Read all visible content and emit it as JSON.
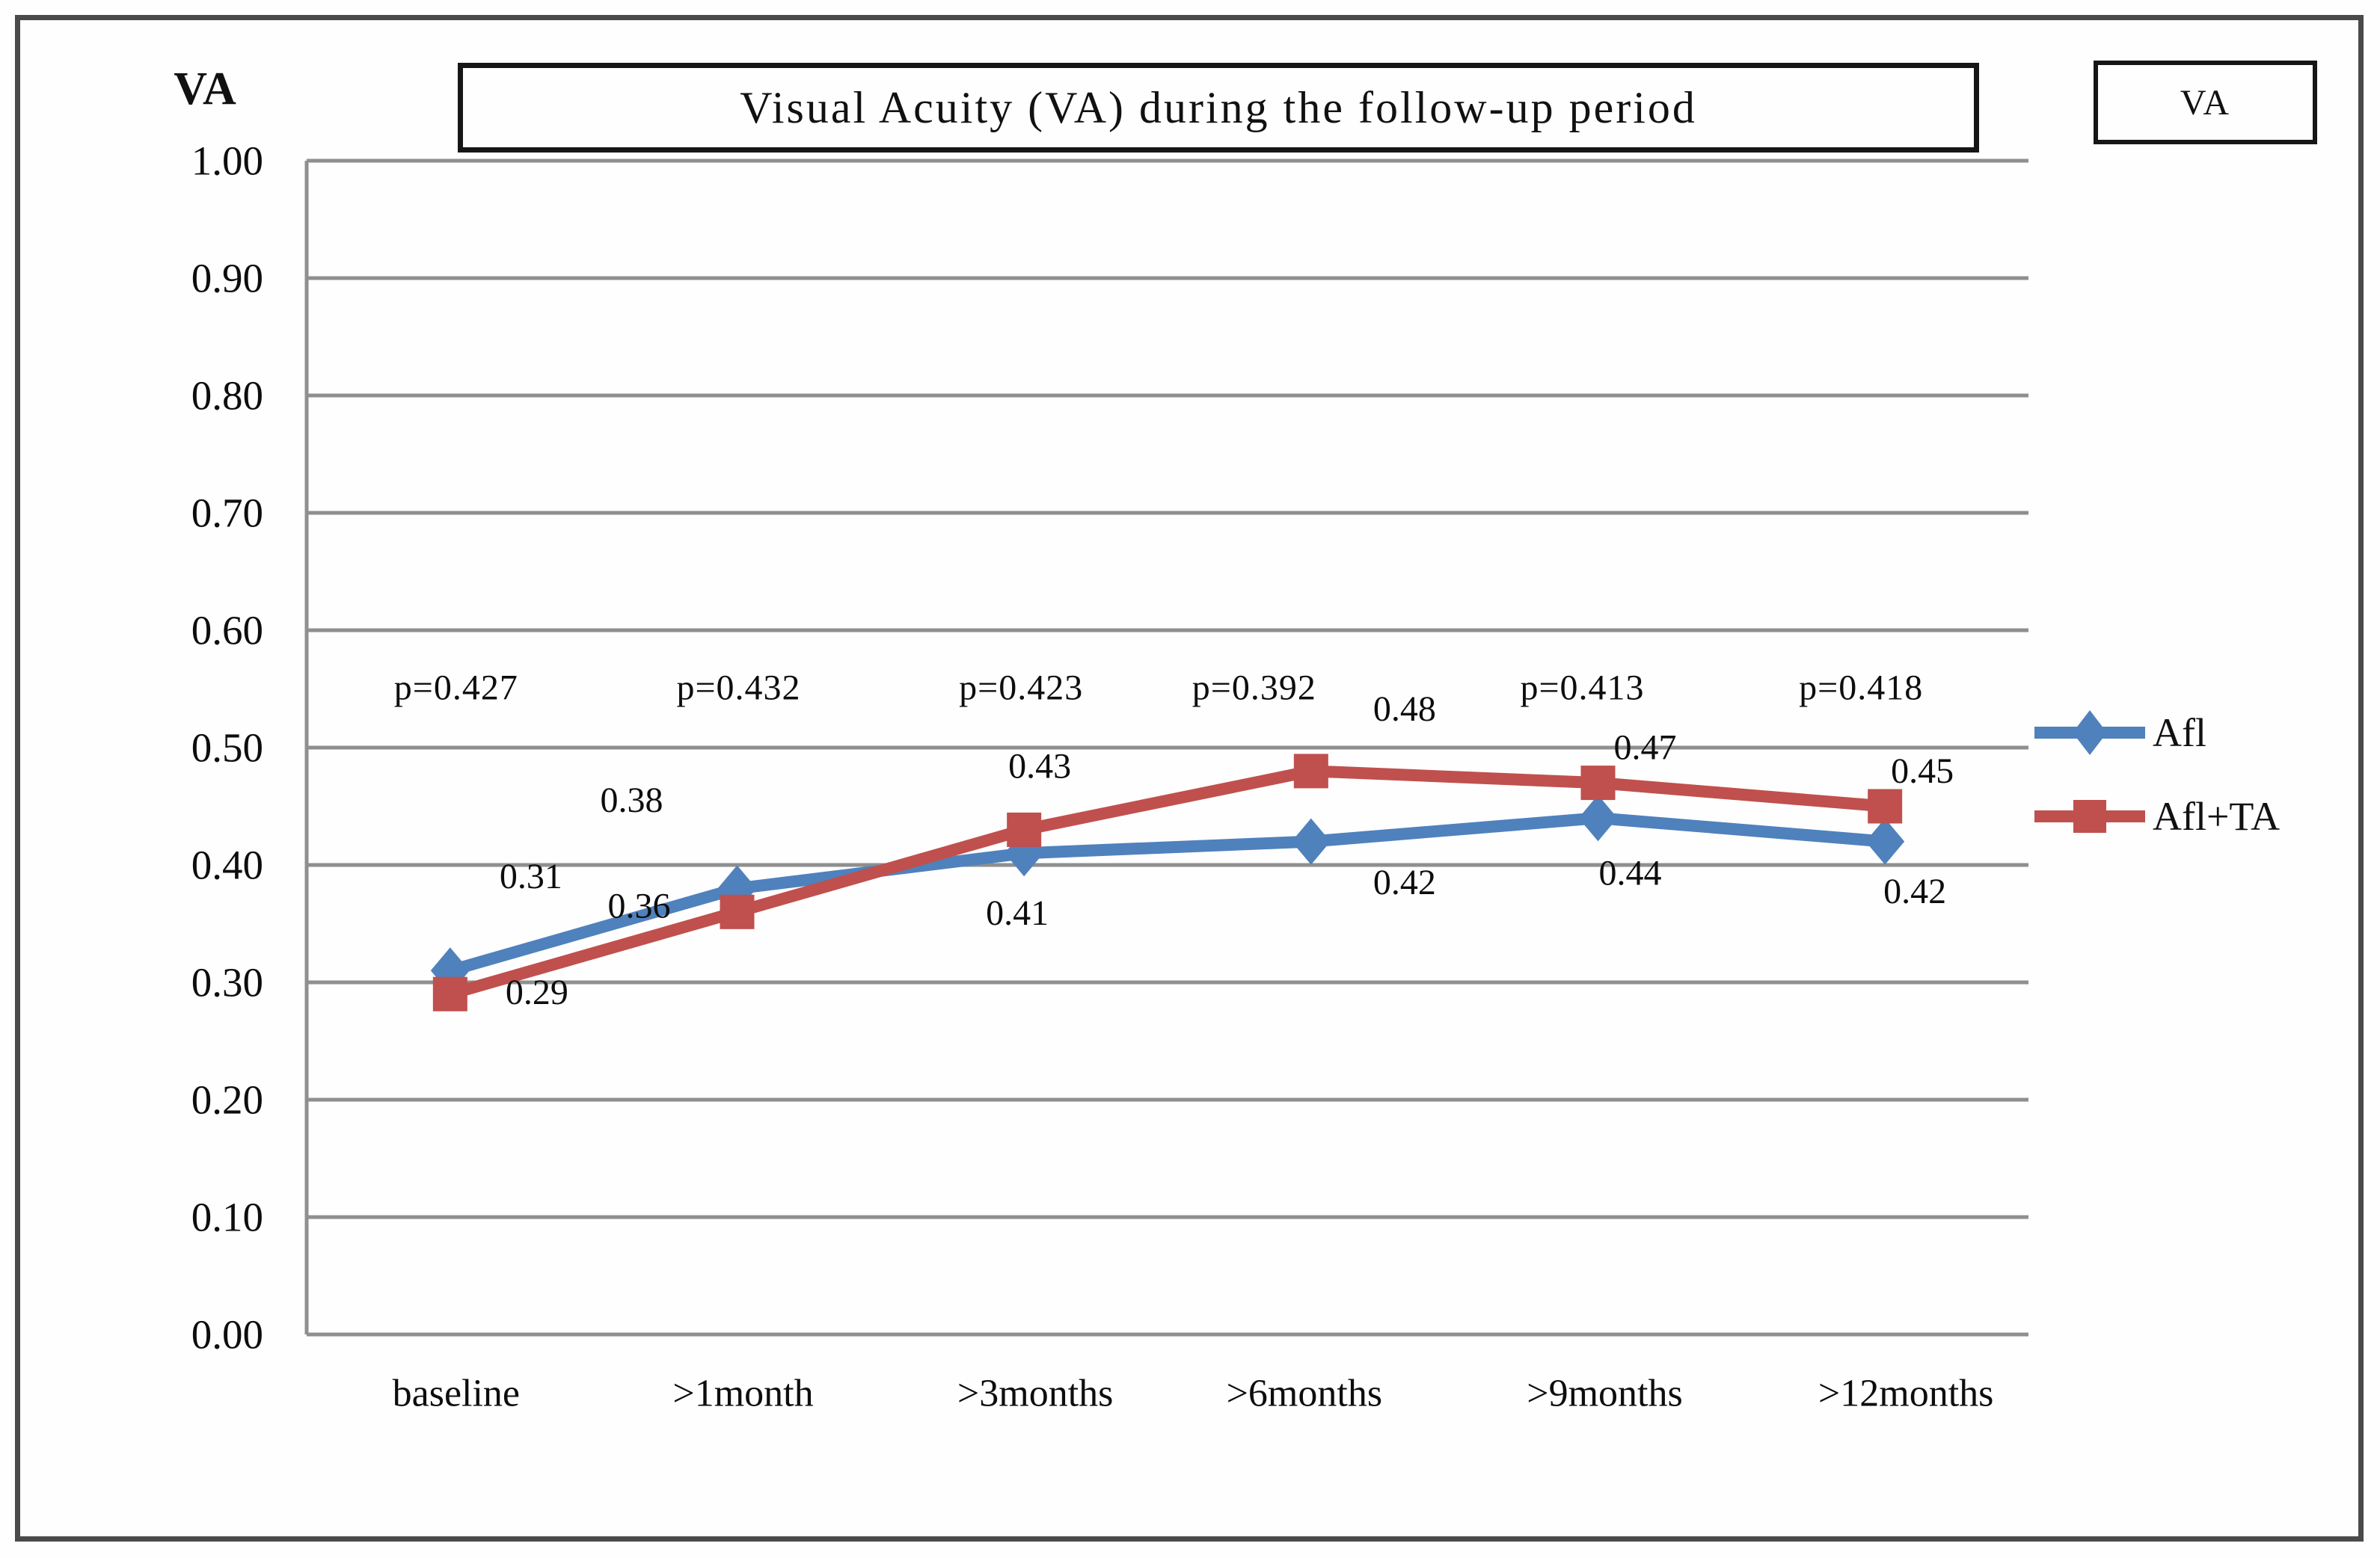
{
  "frame": {
    "border_color": "#4a4a4a",
    "background": "#ffffff"
  },
  "corner_box_label": "VA",
  "chart_data": {
    "type": "line",
    "title": "Visual Acuity (VA) during the follow-up period",
    "ylabel": "VA",
    "xlabel": "",
    "categories": [
      "baseline",
      ">1month",
      ">3months",
      ">6months",
      ">9months",
      ">12months"
    ],
    "series": [
      {
        "name": "Afl",
        "color": "#4F81BD",
        "marker": "diamond",
        "values": [
          0.31,
          0.38,
          0.41,
          0.42,
          0.44,
          0.42
        ]
      },
      {
        "name": "Afl+TA",
        "color": "#C0504D",
        "marker": "square",
        "values": [
          0.29,
          0.36,
          0.43,
          0.48,
          0.47,
          0.45
        ]
      }
    ],
    "p_values": [
      "p=0.427",
      "p=0.432",
      "p=0.423",
      "p=0.392",
      "p=0.413",
      "p=0.418"
    ],
    "ylim": [
      0.0,
      1.0
    ],
    "ytick_step": 0.1,
    "ytick_labels": [
      "0.00",
      "0.10",
      "0.20",
      "0.30",
      "0.40",
      "0.50",
      "0.60",
      "0.70",
      "0.80",
      "0.90",
      "1.00"
    ],
    "grid": true,
    "gridline_color": "#8f8f8f",
    "axis_color": "#8f8f8f",
    "legend_position": "right",
    "legend": [
      "Afl",
      "Afl+TA"
    ]
  }
}
